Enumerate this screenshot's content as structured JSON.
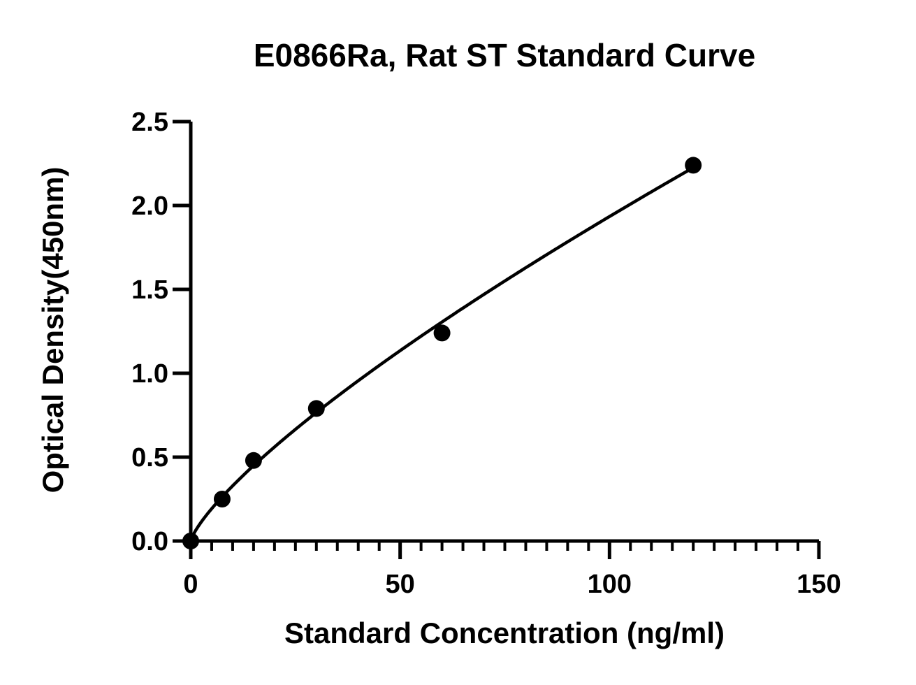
{
  "chart_data": {
    "type": "scatter",
    "title": "E0866Ra, Rat ST Standard Curve",
    "xlabel": "Standard Concentration (ng/ml)",
    "ylabel": "Optical Density(450nm)",
    "xlim": [
      0,
      150
    ],
    "ylim": [
      0,
      2.5
    ],
    "x_ticks": [
      0,
      50,
      100,
      150
    ],
    "x_tick_labels": [
      "0",
      "50",
      "100",
      "150"
    ],
    "y_ticks": [
      0,
      0.5,
      1.0,
      1.5,
      2.0,
      2.5
    ],
    "y_tick_labels": [
      "0.0",
      "0.5",
      "1.0",
      "1.5",
      "2.0",
      "2.5"
    ],
    "x_minor_tick_step": 5,
    "grid": false,
    "legend": "none",
    "series": [
      {
        "x": [
          0,
          7.5,
          15,
          30,
          60,
          120
        ],
        "y": [
          0.0,
          0.25,
          0.48,
          0.79,
          1.24,
          2.24
        ],
        "marker": "circle",
        "fit_curve": true
      }
    ],
    "colors": {
      "points": "#000000",
      "curve": "#000000",
      "axes": "#000000"
    }
  }
}
